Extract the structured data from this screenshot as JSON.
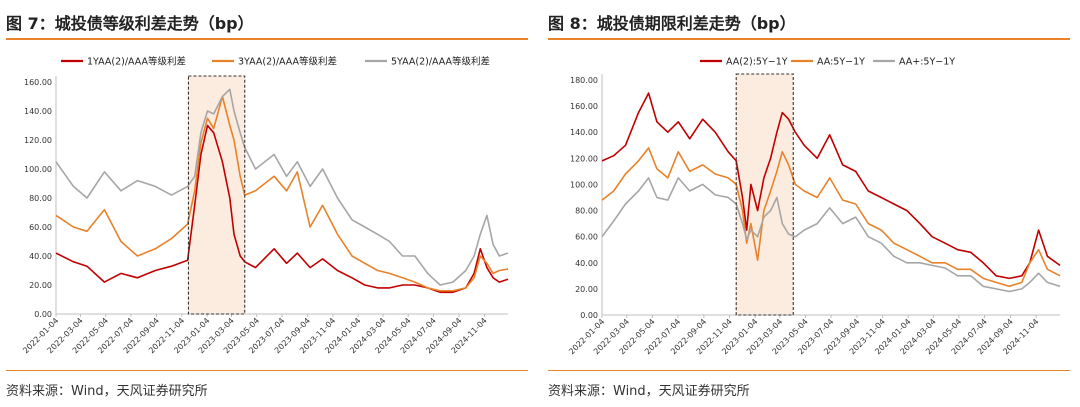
{
  "source_text": "资料来源：Wind，天风证券研究所",
  "chart_data": [
    {
      "type": "line",
      "title": "图 7：城投债等级利差走势（bp）",
      "xlabel": "",
      "ylabel": "",
      "ylim": [
        0,
        160
      ],
      "yticks": [
        "0.00",
        "20.00",
        "40.00",
        "60.00",
        "80.00",
        "100.00",
        "120.00",
        "140.00",
        "160.00"
      ],
      "x_start": "2022-01-04",
      "x_end": "2024-12-31",
      "xticks": [
        "2022-01-04",
        "2022-03-04",
        "2022-05-04",
        "2022-07-04",
        "2022-09-04",
        "2022-11-04",
        "2023-01-04",
        "2023-03-04",
        "2023-05-04",
        "2023-07-04",
        "2023-09-04",
        "2023-11-04",
        "2024-01-04",
        "2024-03-04",
        "2024-05-04",
        "2024-07-04",
        "2024-09-04",
        "2024-11-04"
      ],
      "highlight": {
        "from": "2022-11-20",
        "to": "2023-04-05"
      },
      "legend_position": "top",
      "series": [
        {
          "name": "1YAA(2)/AAA等级利差",
          "color": "#c00000",
          "dates": [
            "2022-01-04",
            "2022-02-15",
            "2022-03-20",
            "2022-05-01",
            "2022-06-10",
            "2022-07-20",
            "2022-09-01",
            "2022-10-10",
            "2022-11-18",
            "2022-12-05",
            "2022-12-20",
            "2023-01-05",
            "2023-01-20",
            "2023-02-10",
            "2023-02-28",
            "2023-03-10",
            "2023-03-25",
            "2023-04-05",
            "2023-05-01",
            "2023-06-15",
            "2023-07-15",
            "2023-08-10",
            "2023-09-10",
            "2023-10-10",
            "2023-11-15",
            "2023-12-20",
            "2024-01-20",
            "2024-02-20",
            "2024-03-20",
            "2024-04-20",
            "2024-05-20",
            "2024-06-20",
            "2024-07-20",
            "2024-08-20",
            "2024-09-20",
            "2024-10-10",
            "2024-10-25",
            "2024-11-10",
            "2024-11-25",
            "2024-12-10",
            "2024-12-31"
          ],
          "values": [
            42,
            36,
            33,
            22,
            28,
            25,
            30,
            33,
            37,
            75,
            110,
            130,
            125,
            105,
            80,
            55,
            40,
            36,
            32,
            45,
            35,
            42,
            32,
            38,
            30,
            25,
            20,
            18,
            18,
            20,
            20,
            18,
            15,
            15,
            18,
            28,
            45,
            32,
            25,
            22,
            24
          ]
        },
        {
          "name": "3YAA(2)/AAA等级利差",
          "color": "#e8822b",
          "dates": [
            "2022-01-04",
            "2022-02-15",
            "2022-03-20",
            "2022-05-01",
            "2022-06-10",
            "2022-07-20",
            "2022-09-01",
            "2022-10-10",
            "2022-11-18",
            "2022-12-05",
            "2022-12-20",
            "2023-01-05",
            "2023-01-20",
            "2023-02-10",
            "2023-02-28",
            "2023-03-10",
            "2023-03-25",
            "2023-04-05",
            "2023-05-01",
            "2023-06-15",
            "2023-07-15",
            "2023-08-10",
            "2023-09-10",
            "2023-10-10",
            "2023-11-15",
            "2023-12-20",
            "2024-01-20",
            "2024-02-20",
            "2024-03-20",
            "2024-04-20",
            "2024-05-20",
            "2024-06-20",
            "2024-07-20",
            "2024-08-20",
            "2024-09-20",
            "2024-10-10",
            "2024-10-25",
            "2024-11-10",
            "2024-11-25",
            "2024-12-10",
            "2024-12-31"
          ],
          "values": [
            68,
            60,
            57,
            72,
            50,
            40,
            45,
            52,
            62,
            85,
            118,
            135,
            128,
            150,
            130,
            120,
            95,
            82,
            85,
            95,
            85,
            98,
            60,
            75,
            55,
            40,
            35,
            30,
            28,
            25,
            22,
            18,
            16,
            16,
            18,
            25,
            40,
            35,
            28,
            30,
            31
          ]
        },
        {
          "name": "5YAA(2)/AAA等级利差",
          "color": "#a6a6a6",
          "dates": [
            "2022-01-04",
            "2022-02-15",
            "2022-03-20",
            "2022-05-01",
            "2022-06-10",
            "2022-07-20",
            "2022-09-01",
            "2022-10-10",
            "2022-11-18",
            "2022-12-05",
            "2022-12-20",
            "2023-01-05",
            "2023-01-20",
            "2023-02-10",
            "2023-02-28",
            "2023-03-10",
            "2023-03-25",
            "2023-04-05",
            "2023-05-01",
            "2023-06-15",
            "2023-07-15",
            "2023-08-10",
            "2023-09-10",
            "2023-10-10",
            "2023-11-15",
            "2023-12-20",
            "2024-01-20",
            "2024-02-20",
            "2024-03-20",
            "2024-04-20",
            "2024-05-20",
            "2024-06-20",
            "2024-07-20",
            "2024-08-20",
            "2024-09-20",
            "2024-10-10",
            "2024-10-25",
            "2024-11-10",
            "2024-11-25",
            "2024-12-10",
            "2024-12-31"
          ],
          "values": [
            105,
            88,
            80,
            98,
            85,
            92,
            88,
            82,
            88,
            95,
            125,
            140,
            138,
            150,
            155,
            140,
            125,
            115,
            100,
            110,
            95,
            105,
            88,
            100,
            80,
            65,
            60,
            55,
            50,
            40,
            40,
            28,
            20,
            22,
            30,
            40,
            55,
            68,
            48,
            40,
            42
          ]
        }
      ]
    },
    {
      "type": "line",
      "title": "图 8：城投债期限利差走势（bp）",
      "xlabel": "",
      "ylabel": "",
      "ylim": [
        0,
        180
      ],
      "yticks": [
        "0.00",
        "20.00",
        "40.00",
        "60.00",
        "80.00",
        "100.00",
        "120.00",
        "140.00",
        "160.00",
        "180.00"
      ],
      "x_start": "2022-01-04",
      "x_end": "2024-12-31",
      "xticks": [
        "2022-01-04",
        "2022-03-04",
        "2022-05-04",
        "2022-07-04",
        "2022-09-04",
        "2022-11-04",
        "2023-01-04",
        "2023-03-04",
        "2023-05-04",
        "2023-07-04",
        "2023-09-04",
        "2023-11-04",
        "2024-01-04",
        "2024-03-04",
        "2024-05-04",
        "2024-07-04",
        "2024-09-04",
        "2024-11-04"
      ],
      "highlight": {
        "from": "2022-11-20",
        "to": "2023-04-05"
      },
      "legend_position": "top",
      "series": [
        {
          "name": "AA(2):5Y−1Y",
          "color": "#c00000",
          "dates": [
            "2022-01-04",
            "2022-02-01",
            "2022-03-01",
            "2022-04-01",
            "2022-04-25",
            "2022-05-15",
            "2022-06-10",
            "2022-07-05",
            "2022-08-01",
            "2022-09-01",
            "2022-10-01",
            "2022-11-01",
            "2022-11-20",
            "2022-12-05",
            "2022-12-15",
            "2022-12-25",
            "2023-01-10",
            "2023-01-25",
            "2023-02-10",
            "2023-02-25",
            "2023-03-10",
            "2023-03-25",
            "2023-04-10",
            "2023-05-01",
            "2023-06-01",
            "2023-07-01",
            "2023-08-01",
            "2023-09-01",
            "2023-10-01",
            "2023-11-01",
            "2023-12-01",
            "2024-01-01",
            "2024-02-01",
            "2024-03-01",
            "2024-04-01",
            "2024-05-01",
            "2024-06-01",
            "2024-07-01",
            "2024-08-01",
            "2024-09-01",
            "2024-10-01",
            "2024-10-20",
            "2024-11-10",
            "2024-12-01",
            "2024-12-31"
          ],
          "values": [
            118,
            122,
            130,
            155,
            170,
            148,
            140,
            148,
            135,
            150,
            140,
            125,
            118,
            90,
            65,
            100,
            80,
            105,
            120,
            140,
            155,
            150,
            140,
            130,
            120,
            138,
            115,
            110,
            95,
            90,
            85,
            80,
            70,
            60,
            55,
            50,
            48,
            40,
            30,
            28,
            30,
            40,
            65,
            45,
            38
          ]
        },
        {
          "name": "AA:5Y−1Y",
          "color": "#e8822b",
          "dates": [
            "2022-01-04",
            "2022-02-01",
            "2022-03-01",
            "2022-04-01",
            "2022-04-25",
            "2022-05-15",
            "2022-06-10",
            "2022-07-05",
            "2022-08-01",
            "2022-09-01",
            "2022-10-01",
            "2022-11-01",
            "2022-11-20",
            "2022-12-05",
            "2022-12-15",
            "2022-12-25",
            "2023-01-10",
            "2023-01-25",
            "2023-02-10",
            "2023-02-25",
            "2023-03-10",
            "2023-03-25",
            "2023-04-10",
            "2023-05-01",
            "2023-06-01",
            "2023-07-01",
            "2023-08-01",
            "2023-09-01",
            "2023-10-01",
            "2023-11-01",
            "2023-12-01",
            "2024-01-01",
            "2024-02-01",
            "2024-03-01",
            "2024-04-01",
            "2024-05-01",
            "2024-06-01",
            "2024-07-01",
            "2024-08-01",
            "2024-09-01",
            "2024-10-01",
            "2024-10-20",
            "2024-11-10",
            "2024-12-01",
            "2024-12-31"
          ],
          "values": [
            88,
            95,
            108,
            118,
            128,
            112,
            105,
            125,
            110,
            115,
            108,
            105,
            100,
            80,
            55,
            70,
            42,
            80,
            95,
            110,
            125,
            115,
            100,
            95,
            90,
            105,
            88,
            85,
            70,
            65,
            55,
            50,
            45,
            40,
            40,
            35,
            35,
            28,
            25,
            22,
            25,
            40,
            50,
            35,
            30
          ]
        },
        {
          "name": "AA+:5Y−1Y",
          "color": "#a6a6a6",
          "dates": [
            "2022-01-04",
            "2022-02-01",
            "2022-03-01",
            "2022-04-01",
            "2022-04-25",
            "2022-05-15",
            "2022-06-10",
            "2022-07-05",
            "2022-08-01",
            "2022-09-01",
            "2022-10-01",
            "2022-11-01",
            "2022-11-20",
            "2022-12-05",
            "2022-12-15",
            "2022-12-25",
            "2023-01-10",
            "2023-01-25",
            "2023-02-10",
            "2023-02-25",
            "2023-03-10",
            "2023-03-25",
            "2023-04-10",
            "2023-05-01",
            "2023-06-01",
            "2023-07-01",
            "2023-08-01",
            "2023-09-01",
            "2023-10-01",
            "2023-11-01",
            "2023-12-01",
            "2024-01-01",
            "2024-02-01",
            "2024-03-01",
            "2024-04-01",
            "2024-05-01",
            "2024-06-01",
            "2024-07-01",
            "2024-08-01",
            "2024-09-01",
            "2024-10-01",
            "2024-10-20",
            "2024-11-10",
            "2024-12-01",
            "2024-12-31"
          ],
          "values": [
            60,
            72,
            85,
            95,
            105,
            90,
            88,
            105,
            95,
            100,
            92,
            90,
            85,
            70,
            58,
            65,
            60,
            75,
            80,
            90,
            70,
            62,
            60,
            65,
            70,
            82,
            70,
            75,
            60,
            55,
            45,
            40,
            40,
            38,
            36,
            30,
            30,
            22,
            20,
            18,
            20,
            25,
            32,
            25,
            22
          ]
        }
      ]
    }
  ]
}
